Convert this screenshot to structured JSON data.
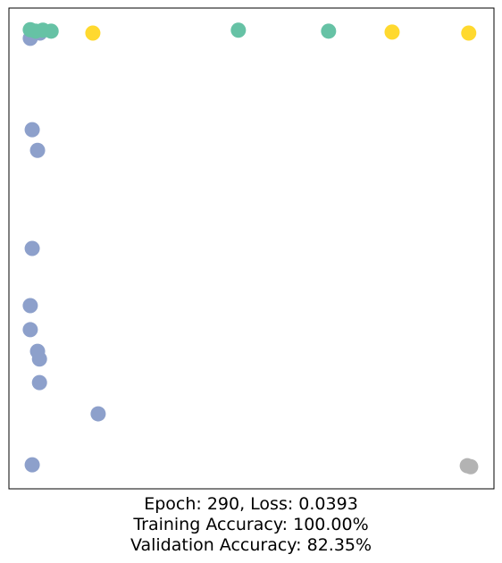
{
  "chart_data": {
    "type": "scatter",
    "caption_lines": [
      "Epoch: 290, Loss: 0.0393",
      "Training Accuracy: 100.00%",
      "Validation Accuracy: 82.35%"
    ],
    "xlim": [
      0,
      1
    ],
    "ylim": [
      0,
      1
    ],
    "series": [
      {
        "color": "#8da0cb",
        "x": [
          0.044,
          0.048,
          0.059,
          0.048,
          0.044,
          0.044,
          0.059,
          0.063,
          0.063,
          0.184,
          0.048,
          0.064
        ],
        "values": [
          0.937,
          0.747,
          0.704,
          0.5,
          0.381,
          0.331,
          0.286,
          0.27,
          0.221,
          0.156,
          0.05,
          0.948
        ]
      },
      {
        "color": "#66c2a5",
        "x": [
          0.044,
          0.055,
          0.07,
          0.087,
          0.473,
          0.659
        ],
        "values": [
          0.955,
          0.952,
          0.954,
          0.952,
          0.954,
          0.952
        ]
      },
      {
        "color": "#ffd92f",
        "x": [
          0.173,
          0.79,
          0.948
        ],
        "values": [
          0.948,
          0.95,
          0.948
        ]
      },
      {
        "color": "#b3b3b3",
        "x": [
          0.945,
          0.952
        ],
        "values": [
          0.048,
          0.046
        ]
      }
    ]
  }
}
